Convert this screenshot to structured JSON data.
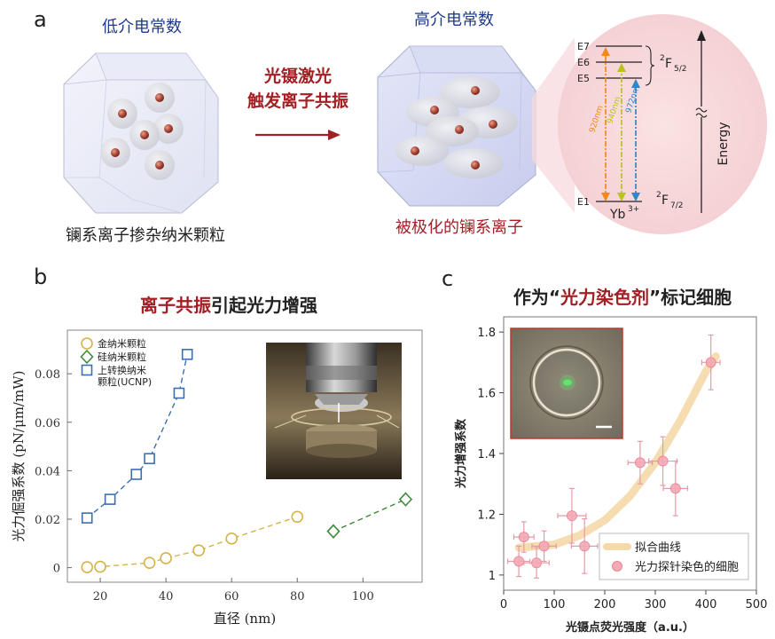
{
  "panel_a": {
    "label": "a",
    "left_title": "低介电常数",
    "right_title": "高介电常数",
    "arrow_line1": "光镊激光",
    "arrow_line2": "触发离子共振",
    "left_caption": "镧系离子掺杂纳米颗粒",
    "right_caption": "被极化的镧系离子",
    "energy_diagram": {
      "levels": [
        "E7",
        "E6",
        "E5",
        "E1"
      ],
      "upper_term": "2F5/2",
      "lower_term": "2F7/2",
      "ion": "Yb3+",
      "axis_label": "Energy",
      "transitions": [
        "920nm",
        "940nm",
        "972nm"
      ],
      "colors": {
        "920nm": "#f08a1c",
        "940nm": "#b8c41a",
        "972nm": "#2f86c8"
      }
    }
  },
  "panel_b": {
    "label": "b",
    "title_highlight": "离子共振",
    "title_rest": "引起光力增强",
    "chart_data": {
      "type": "scatter",
      "xlabel": "直径 (nm)",
      "ylabel": "光力倔强系数 (pN/μm/mW)",
      "xlim": [
        10,
        118
      ],
      "ylim": [
        -0.006,
        0.098
      ],
      "xticks": [
        20,
        40,
        60,
        80,
        100
      ],
      "yticks": [
        0,
        0.02,
        0.04,
        0.06,
        0.08
      ],
      "xtick_labels": [
        "20",
        "40",
        "60",
        "80",
        "100"
      ],
      "ytick_labels": [
        "0",
        "0.02",
        "0.04",
        "0.06",
        "0.08"
      ],
      "legend": "top-left",
      "series": [
        {
          "name": "金纳米颗粒",
          "marker": "circle",
          "color": "#d4b449",
          "x": [
            16,
            20,
            35,
            40,
            50,
            60,
            80
          ],
          "y": [
            0.0002,
            0.0004,
            0.002,
            0.0039,
            0.0071,
            0.012,
            0.021
          ]
        },
        {
          "name": "硅纳米颗粒",
          "marker": "diamond",
          "color": "#3f8a3a",
          "x": [
            91,
            113
          ],
          "y": [
            0.015,
            0.0282
          ]
        },
        {
          "name": "上转换纳米颗粒(UCNP)",
          "name_line1": "上转换纳米",
          "name_line2": "颗粒(UCNP)",
          "marker": "square",
          "color": "#3b6fb0",
          "x": [
            16,
            23,
            31,
            35,
            44,
            46.5
          ],
          "y": [
            0.0205,
            0.0282,
            0.0385,
            0.045,
            0.072,
            0.088
          ]
        }
      ]
    }
  },
  "panel_c": {
    "label": "c",
    "title_pre": "作为“",
    "title_highlight": "光力染色剂",
    "title_post": "”标记细胞",
    "chart_data": {
      "type": "scatter",
      "xlabel": "光镊点荧光强度（a.u.）",
      "ylabel": "光力增强系数",
      "xlim": [
        0,
        500
      ],
      "ylim": [
        0.95,
        1.85
      ],
      "xticks": [
        0,
        100,
        200,
        300,
        400,
        500
      ],
      "yticks": [
        1.0,
        1.2,
        1.4,
        1.6,
        1.8
      ],
      "xtick_labels": [
        "0",
        "100",
        "200",
        "300",
        "400",
        "500"
      ],
      "ytick_labels": [
        "1",
        "1.2",
        "1.4",
        "1.6",
        "1.8"
      ],
      "legend": "bottom-right",
      "fit_label": "拟合曲线",
      "points_label": "光力探针染色的细胞",
      "fit": {
        "x": [
          30,
          100,
          150,
          200,
          250,
          300,
          350,
          400,
          420
        ],
        "y": [
          1.09,
          1.1,
          1.13,
          1.18,
          1.26,
          1.37,
          1.51,
          1.67,
          1.72
        ]
      },
      "points": {
        "x": [
          30,
          40,
          65,
          80,
          135,
          160,
          270,
          315,
          340,
          410
        ],
        "y": [
          1.045,
          1.125,
          1.04,
          1.095,
          1.195,
          1.095,
          1.37,
          1.375,
          1.285,
          1.7
        ],
        "xerr": [
          22,
          20,
          25,
          24,
          28,
          26,
          24,
          28,
          24,
          18
        ],
        "yerr": [
          0.05,
          0.05,
          0.05,
          0.05,
          0.09,
          0.09,
          0.07,
          0.08,
          0.09,
          0.09
        ]
      },
      "colors": {
        "fit": "#f5d9a8",
        "points": "#f4a9b5",
        "errorbar": "#e79aa6"
      }
    }
  }
}
